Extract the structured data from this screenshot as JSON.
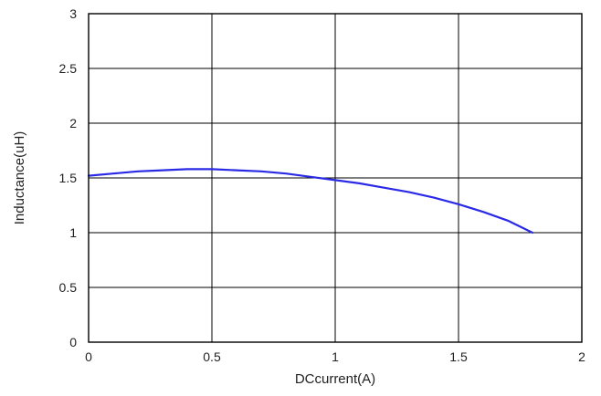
{
  "chart_data": {
    "type": "line",
    "title": "",
    "xlabel": "DCcurrent(A)",
    "ylabel": "Inductance(uH)",
    "xlim": [
      0,
      2
    ],
    "ylim": [
      0,
      3
    ],
    "x_ticks": [
      "0",
      "0.5",
      "1",
      "1.5",
      "2"
    ],
    "y_ticks": [
      "0",
      "0.5",
      "1",
      "1.5",
      "2",
      "2.5",
      "3"
    ],
    "grid": true,
    "series": [
      {
        "color": "#2a2ae6",
        "x": [
          0,
          0.1,
          0.2,
          0.3,
          0.4,
          0.5,
          0.6,
          0.7,
          0.8,
          0.9,
          1.0,
          1.1,
          1.2,
          1.3,
          1.4,
          1.5,
          1.6,
          1.7,
          1.8
        ],
        "y": [
          1.52,
          1.54,
          1.56,
          1.57,
          1.58,
          1.58,
          1.57,
          1.56,
          1.54,
          1.51,
          1.48,
          1.45,
          1.41,
          1.37,
          1.32,
          1.26,
          1.19,
          1.11,
          1.0
        ]
      }
    ]
  }
}
